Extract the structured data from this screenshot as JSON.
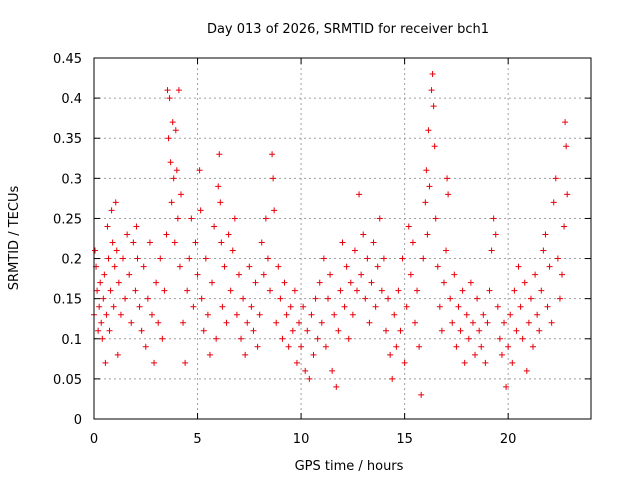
{
  "chart_data": {
    "type": "scatter",
    "title": "Day 013 of 2026, SRMTID for receiver bch1",
    "xlabel": "GPS time / hours",
    "ylabel": "SRMTID / TECUs",
    "xlim": [
      0,
      24
    ],
    "ylim": [
      0,
      0.45
    ],
    "x_ticks": [
      0,
      5,
      10,
      15,
      20
    ],
    "x_tick_labels": [
      "0",
      "5",
      "10",
      "15",
      "20"
    ],
    "y_ticks": [
      0,
      0.05,
      0.1,
      0.15,
      0.2,
      0.25,
      0.3,
      0.35,
      0.4,
      0.45
    ],
    "y_tick_labels": [
      "0",
      "0.05",
      "0.1",
      "0.15",
      "0.2",
      "0.25",
      "0.3",
      "0.35",
      "0.4",
      "0.45"
    ],
    "grid": true,
    "marker": "plus",
    "color": "#e8000b",
    "series": [
      {
        "name": "SRMTID",
        "points": [
          [
            0.0,
            0.13
          ],
          [
            0.05,
            0.21
          ],
          [
            0.1,
            0.19
          ],
          [
            0.15,
            0.16
          ],
          [
            0.2,
            0.11
          ],
          [
            0.25,
            0.14
          ],
          [
            0.3,
            0.17
          ],
          [
            0.35,
            0.12
          ],
          [
            0.4,
            0.1
          ],
          [
            0.45,
            0.15
          ],
          [
            0.5,
            0.18
          ],
          [
            0.55,
            0.07
          ],
          [
            0.6,
            0.13
          ],
          [
            0.65,
            0.24
          ],
          [
            0.7,
            0.2
          ],
          [
            0.75,
            0.11
          ],
          [
            0.8,
            0.16
          ],
          [
            0.85,
            0.26
          ],
          [
            0.9,
            0.22
          ],
          [
            0.95,
            0.14
          ],
          [
            1.0,
            0.19
          ],
          [
            1.05,
            0.27
          ],
          [
            1.1,
            0.21
          ],
          [
            1.15,
            0.08
          ],
          [
            1.2,
            0.17
          ],
          [
            1.3,
            0.13
          ],
          [
            1.4,
            0.2
          ],
          [
            1.5,
            0.15
          ],
          [
            1.6,
            0.23
          ],
          [
            1.7,
            0.18
          ],
          [
            1.8,
            0.12
          ],
          [
            1.9,
            0.22
          ],
          [
            2.0,
            0.16
          ],
          [
            2.05,
            0.24
          ],
          [
            2.1,
            0.2
          ],
          [
            2.2,
            0.14
          ],
          [
            2.3,
            0.11
          ],
          [
            2.4,
            0.19
          ],
          [
            2.5,
            0.09
          ],
          [
            2.6,
            0.15
          ],
          [
            2.7,
            0.22
          ],
          [
            2.8,
            0.13
          ],
          [
            2.9,
            0.07
          ],
          [
            3.0,
            0.17
          ],
          [
            3.1,
            0.12
          ],
          [
            3.2,
            0.2
          ],
          [
            3.3,
            0.1
          ],
          [
            3.4,
            0.16
          ],
          [
            3.5,
            0.23
          ],
          [
            3.55,
            0.41
          ],
          [
            3.6,
            0.35
          ],
          [
            3.65,
            0.4
          ],
          [
            3.7,
            0.32
          ],
          [
            3.75,
            0.27
          ],
          [
            3.8,
            0.37
          ],
          [
            3.85,
            0.3
          ],
          [
            3.9,
            0.22
          ],
          [
            3.95,
            0.36
          ],
          [
            4.0,
            0.31
          ],
          [
            4.05,
            0.25
          ],
          [
            4.1,
            0.41
          ],
          [
            4.15,
            0.19
          ],
          [
            4.2,
            0.28
          ],
          [
            4.3,
            0.12
          ],
          [
            4.4,
            0.07
          ],
          [
            4.5,
            0.16
          ],
          [
            4.6,
            0.2
          ],
          [
            4.7,
            0.25
          ],
          [
            4.8,
            0.14
          ],
          [
            4.9,
            0.22
          ],
          [
            5.0,
            0.18
          ],
          [
            5.1,
            0.31
          ],
          [
            5.15,
            0.26
          ],
          [
            5.2,
            0.15
          ],
          [
            5.3,
            0.11
          ],
          [
            5.4,
            0.2
          ],
          [
            5.5,
            0.13
          ],
          [
            5.6,
            0.08
          ],
          [
            5.7,
            0.17
          ],
          [
            5.8,
            0.24
          ],
          [
            5.9,
            0.1
          ],
          [
            6.0,
            0.29
          ],
          [
            6.05,
            0.33
          ],
          [
            6.1,
            0.27
          ],
          [
            6.15,
            0.22
          ],
          [
            6.2,
            0.14
          ],
          [
            6.3,
            0.19
          ],
          [
            6.4,
            0.12
          ],
          [
            6.5,
            0.23
          ],
          [
            6.6,
            0.16
          ],
          [
            6.7,
            0.21
          ],
          [
            6.8,
            0.25
          ],
          [
            6.9,
            0.13
          ],
          [
            7.0,
            0.18
          ],
          [
            7.1,
            0.1
          ],
          [
            7.2,
            0.15
          ],
          [
            7.3,
            0.08
          ],
          [
            7.4,
            0.12
          ],
          [
            7.5,
            0.19
          ],
          [
            7.6,
            0.14
          ],
          [
            7.7,
            0.11
          ],
          [
            7.8,
            0.17
          ],
          [
            7.9,
            0.09
          ],
          [
            8.0,
            0.13
          ],
          [
            8.1,
            0.22
          ],
          [
            8.2,
            0.18
          ],
          [
            8.3,
            0.25
          ],
          [
            8.4,
            0.2
          ],
          [
            8.5,
            0.16
          ],
          [
            8.6,
            0.33
          ],
          [
            8.65,
            0.3
          ],
          [
            8.7,
            0.26
          ],
          [
            8.8,
            0.12
          ],
          [
            8.9,
            0.19
          ],
          [
            9.0,
            0.15
          ],
          [
            9.1,
            0.1
          ],
          [
            9.2,
            0.17
          ],
          [
            9.3,
            0.13
          ],
          [
            9.4,
            0.09
          ],
          [
            9.5,
            0.14
          ],
          [
            9.6,
            0.11
          ],
          [
            9.7,
            0.16
          ],
          [
            9.8,
            0.07
          ],
          [
            9.9,
            0.12
          ],
          [
            10.0,
            0.09
          ],
          [
            10.1,
            0.14
          ],
          [
            10.2,
            0.06
          ],
          [
            10.3,
            0.11
          ],
          [
            10.4,
            0.05
          ],
          [
            10.5,
            0.13
          ],
          [
            10.6,
            0.08
          ],
          [
            10.7,
            0.15
          ],
          [
            10.8,
            0.1
          ],
          [
            10.9,
            0.17
          ],
          [
            11.0,
            0.12
          ],
          [
            11.1,
            0.2
          ],
          [
            11.2,
            0.09
          ],
          [
            11.3,
            0.15
          ],
          [
            11.4,
            0.18
          ],
          [
            11.5,
            0.06
          ],
          [
            11.6,
            0.13
          ],
          [
            11.7,
            0.04
          ],
          [
            11.8,
            0.11
          ],
          [
            11.9,
            0.16
          ],
          [
            12.0,
            0.22
          ],
          [
            12.1,
            0.14
          ],
          [
            12.2,
            0.19
          ],
          [
            12.3,
            0.1
          ],
          [
            12.4,
            0.17
          ],
          [
            12.5,
            0.13
          ],
          [
            12.6,
            0.21
          ],
          [
            12.7,
            0.16
          ],
          [
            12.8,
            0.28
          ],
          [
            12.9,
            0.18
          ],
          [
            13.0,
            0.23
          ],
          [
            13.1,
            0.15
          ],
          [
            13.2,
            0.2
          ],
          [
            13.3,
            0.12
          ],
          [
            13.4,
            0.17
          ],
          [
            13.5,
            0.22
          ],
          [
            13.6,
            0.14
          ],
          [
            13.7,
            0.19
          ],
          [
            13.8,
            0.25
          ],
          [
            13.9,
            0.16
          ],
          [
            14.0,
            0.2
          ],
          [
            14.1,
            0.11
          ],
          [
            14.2,
            0.15
          ],
          [
            14.3,
            0.08
          ],
          [
            14.4,
            0.05
          ],
          [
            14.5,
            0.13
          ],
          [
            14.6,
            0.09
          ],
          [
            14.7,
            0.16
          ],
          [
            14.8,
            0.11
          ],
          [
            14.9,
            0.2
          ],
          [
            15.0,
            0.07
          ],
          [
            15.1,
            0.14
          ],
          [
            15.2,
            0.24
          ],
          [
            15.3,
            0.18
          ],
          [
            15.4,
            0.22
          ],
          [
            15.5,
            0.12
          ],
          [
            15.6,
            0.16
          ],
          [
            15.7,
            0.09
          ],
          [
            15.8,
            0.03
          ],
          [
            15.9,
            0.2
          ],
          [
            16.0,
            0.27
          ],
          [
            16.05,
            0.31
          ],
          [
            16.1,
            0.23
          ],
          [
            16.15,
            0.36
          ],
          [
            16.2,
            0.29
          ],
          [
            16.3,
            0.41
          ],
          [
            16.35,
            0.43
          ],
          [
            16.4,
            0.39
          ],
          [
            16.45,
            0.34
          ],
          [
            16.5,
            0.25
          ],
          [
            16.6,
            0.19
          ],
          [
            16.7,
            0.14
          ],
          [
            16.8,
            0.11
          ],
          [
            16.9,
            0.17
          ],
          [
            17.0,
            0.21
          ],
          [
            17.05,
            0.3
          ],
          [
            17.1,
            0.28
          ],
          [
            17.2,
            0.15
          ],
          [
            17.3,
            0.12
          ],
          [
            17.4,
            0.18
          ],
          [
            17.5,
            0.09
          ],
          [
            17.6,
            0.14
          ],
          [
            17.7,
            0.11
          ],
          [
            17.8,
            0.16
          ],
          [
            17.9,
            0.07
          ],
          [
            18.0,
            0.13
          ],
          [
            18.1,
            0.1
          ],
          [
            18.2,
            0.17
          ],
          [
            18.3,
            0.12
          ],
          [
            18.4,
            0.08
          ],
          [
            18.5,
            0.15
          ],
          [
            18.6,
            0.11
          ],
          [
            18.7,
            0.09
          ],
          [
            18.8,
            0.13
          ],
          [
            18.9,
            0.07
          ],
          [
            19.0,
            0.12
          ],
          [
            19.1,
            0.16
          ],
          [
            19.2,
            0.21
          ],
          [
            19.3,
            0.25
          ],
          [
            19.4,
            0.23
          ],
          [
            19.5,
            0.14
          ],
          [
            19.6,
            0.1
          ],
          [
            19.7,
            0.08
          ],
          [
            19.8,
            0.12
          ],
          [
            19.9,
            0.04
          ],
          [
            20.0,
            0.09
          ],
          [
            20.1,
            0.13
          ],
          [
            20.2,
            0.07
          ],
          [
            20.3,
            0.16
          ],
          [
            20.4,
            0.11
          ],
          [
            20.5,
            0.19
          ],
          [
            20.6,
            0.14
          ],
          [
            20.7,
            0.1
          ],
          [
            20.8,
            0.17
          ],
          [
            20.9,
            0.06
          ],
          [
            21.0,
            0.12
          ],
          [
            21.1,
            0.15
          ],
          [
            21.2,
            0.09
          ],
          [
            21.3,
            0.18
          ],
          [
            21.4,
            0.13
          ],
          [
            21.5,
            0.11
          ],
          [
            21.6,
            0.16
          ],
          [
            21.7,
            0.21
          ],
          [
            21.8,
            0.23
          ],
          [
            21.9,
            0.14
          ],
          [
            22.0,
            0.19
          ],
          [
            22.1,
            0.12
          ],
          [
            22.2,
            0.27
          ],
          [
            22.3,
            0.3
          ],
          [
            22.4,
            0.2
          ],
          [
            22.5,
            0.15
          ],
          [
            22.6,
            0.18
          ],
          [
            22.7,
            0.24
          ],
          [
            22.75,
            0.37
          ],
          [
            22.8,
            0.34
          ],
          [
            22.85,
            0.28
          ]
        ]
      }
    ]
  }
}
